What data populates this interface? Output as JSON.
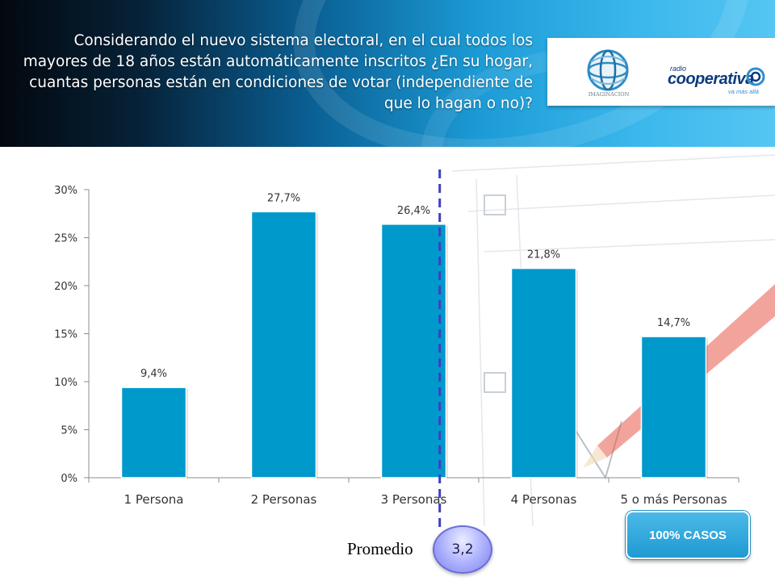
{
  "header": {
    "title": "Considerando el nuevo sistema electoral, en el cual todos los mayores de 18 años están automáticamente inscritos ¿En su hogar, cuantas personas están en condiciones de votar (independiente de que lo hagan o no)?",
    "logos": {
      "imaginacion_text": "IMAGINACION",
      "cooperativa_small": "radio",
      "cooperativa_name": "cooperativa",
      "cooperativa_tagline": "va más allá"
    }
  },
  "chart_data": {
    "type": "bar",
    "categories": [
      "1 Persona",
      "2 Personas",
      "3 Personas",
      "4 Personas",
      "5 o más Personas"
    ],
    "values": [
      9.4,
      27.7,
      26.4,
      21.8,
      14.7
    ],
    "value_labels": [
      "9,4%",
      "27,7%",
      "26,4%",
      "21,8%",
      "14,7%"
    ],
    "ylim": [
      0,
      30
    ],
    "yticks": [
      0,
      5,
      10,
      15,
      20,
      25,
      30
    ],
    "ytick_labels": [
      "0%",
      "5%",
      "10%",
      "15%",
      "20%",
      "25%",
      "30%"
    ],
    "average_line_position": 3.2,
    "grid": false,
    "colors": {
      "bar": "#0099cc",
      "average_line": "#3f3fbf"
    }
  },
  "promedio": {
    "label": "Promedio",
    "value": "3,2"
  },
  "casos_badge": "100% CASOS"
}
